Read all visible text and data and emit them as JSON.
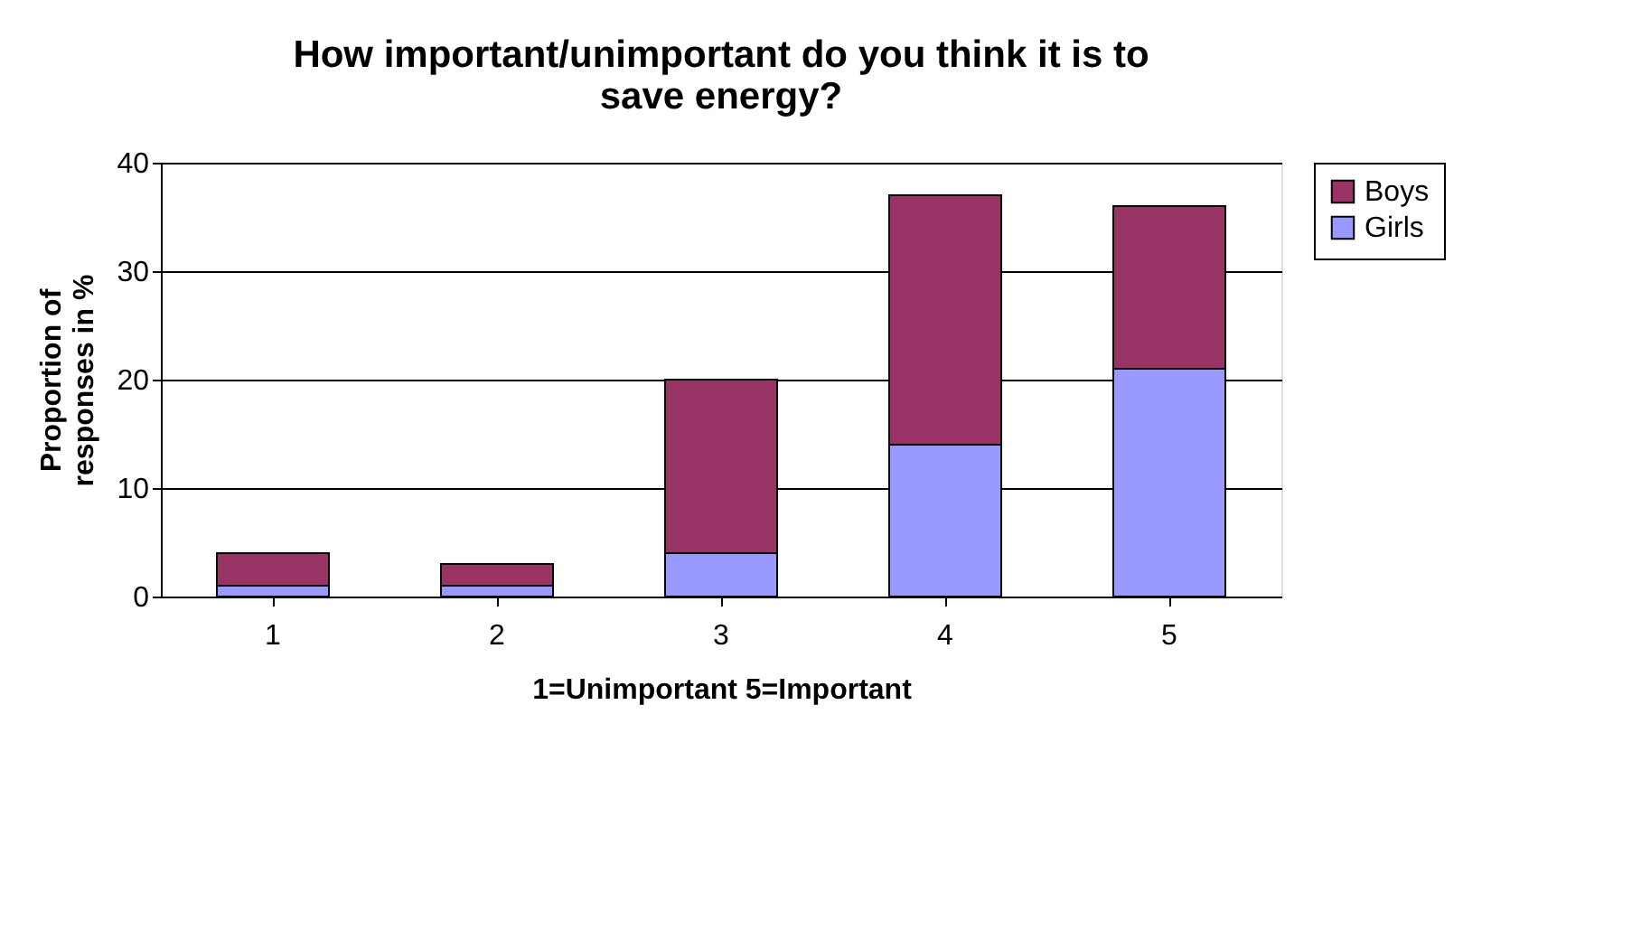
{
  "chart_data": {
    "type": "bar",
    "stacked": true,
    "title": "How important/unimportant do you think it is to save energy?",
    "xlabel": "1=Unimportant     5=Important",
    "ylabel": "Proportion of responses in %",
    "categories": [
      "1",
      "2",
      "3",
      "4",
      "5"
    ],
    "series": [
      {
        "name": "Girls",
        "color": "#9999ff",
        "values": [
          1,
          1,
          4,
          14,
          21
        ]
      },
      {
        "name": "Boys",
        "color": "#993366",
        "values": [
          3,
          2,
          16,
          23,
          15
        ]
      }
    ],
    "ylim": [
      0,
      40
    ],
    "yticks": [
      0,
      10,
      20,
      30,
      40
    ],
    "grid": "y",
    "legend": "right"
  }
}
